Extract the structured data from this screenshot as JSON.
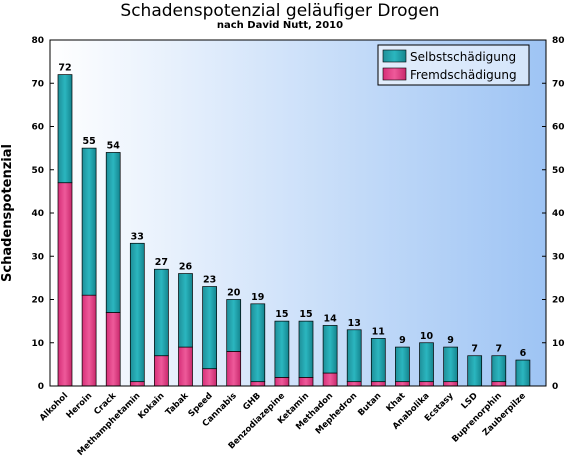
{
  "chart_data": {
    "type": "bar",
    "stacked": true,
    "title": "Schadenspotenzial geläufiger Drogen",
    "subtitle": "nach David Nutt, 2010",
    "ylabel": "Schadenspotenzial",
    "xlabel": "",
    "ylim": [
      0,
      80
    ],
    "yticks": [
      0,
      10,
      20,
      30,
      40,
      50,
      60,
      70,
      80
    ],
    "grid": false,
    "legend_position": "top-right",
    "categories": [
      "Alkohol",
      "Heroin",
      "Crack",
      "Methamphetamin",
      "Kokain",
      "Tabak",
      "Speed",
      "Cannabis",
      "GHB",
      "Benzodiazepine",
      "Ketamin",
      "Methadon",
      "Mephedron",
      "Butan",
      "Khat",
      "Anabolika",
      "Ecstasy",
      "LSD",
      "Buprenorphin",
      "Zauberpilze"
    ],
    "totals": [
      72,
      55,
      54,
      33,
      27,
      26,
      23,
      20,
      19,
      15,
      15,
      14,
      13,
      11,
      9,
      10,
      9,
      7,
      7,
      6
    ],
    "series": [
      {
        "name": "Selbstschädigung",
        "color": "#1a9aa3",
        "values": [
          25,
          34,
          37,
          32,
          20,
          17,
          19,
          12,
          18,
          13,
          13,
          11,
          12,
          10,
          8,
          9,
          8,
          7,
          6,
          6
        ]
      },
      {
        "name": "Fremdschädigung",
        "color": "#e0357f",
        "values": [
          47,
          21,
          17,
          1,
          7,
          9,
          4,
          8,
          1,
          2,
          2,
          3,
          1,
          1,
          1,
          1,
          1,
          0,
          1,
          0
        ]
      }
    ]
  }
}
